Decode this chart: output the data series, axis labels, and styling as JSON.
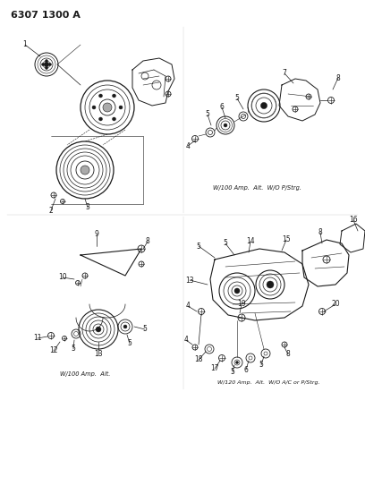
{
  "title": "6307 1300 A",
  "bg_color": "#ffffff",
  "fg_color": "#1a1a1a",
  "caption_top_right": "W/100 Amp.  Alt.  W/O P/Strg.",
  "caption_bottom_left": "W/100 Amp.  Alt.",
  "caption_bottom_right": "W/120 Amp.  Alt.  W/O A/C or P/Strg.",
  "line_color": "#222222"
}
